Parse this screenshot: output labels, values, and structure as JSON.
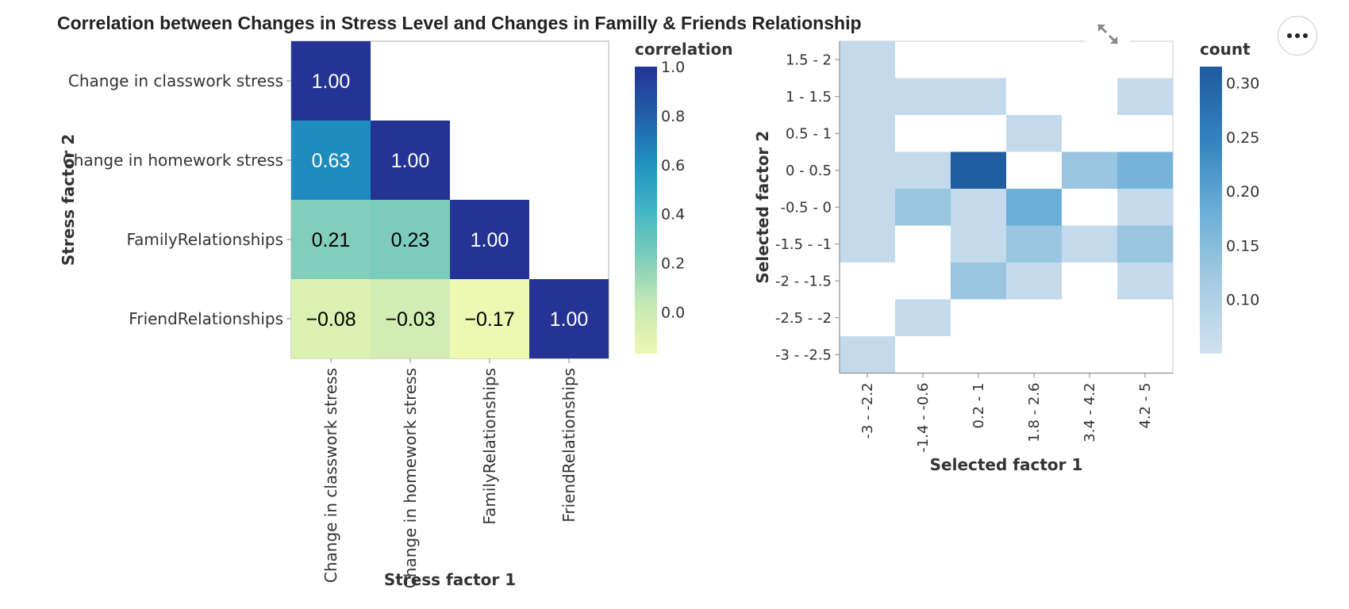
{
  "title": "Correlation between Changes in Stress Level and Changes in Familly & Friends Relationship",
  "icons": {
    "expand": "expand-arrows-icon",
    "menu": "more-horizontal-icon"
  },
  "chart_data": [
    {
      "type": "heatmap",
      "x_categories": [
        "Change in classwork stress",
        "Change in homework stress",
        "FamilyRelationships",
        "FriendRelationships"
      ],
      "y_categories": [
        "Change in classwork stress",
        "Change in homework stress",
        "FamilyRelationships",
        "FriendRelationships"
      ],
      "cells": [
        {
          "x": "Change in classwork stress",
          "y": "Change in classwork stress",
          "value": 1.0,
          "label": "1.00"
        },
        {
          "x": "Change in classwork stress",
          "y": "Change in homework stress",
          "value": 0.63,
          "label": "0.63"
        },
        {
          "x": "Change in homework stress",
          "y": "Change in homework stress",
          "value": 1.0,
          "label": "1.00"
        },
        {
          "x": "Change in classwork stress",
          "y": "FamilyRelationships",
          "value": 0.21,
          "label": "0.21"
        },
        {
          "x": "Change in homework stress",
          "y": "FamilyRelationships",
          "value": 0.23,
          "label": "0.23"
        },
        {
          "x": "FamilyRelationships",
          "y": "FamilyRelationships",
          "value": 1.0,
          "label": "1.00"
        },
        {
          "x": "Change in classwork stress",
          "y": "FriendRelationships",
          "value": -0.08,
          "label": "−0.08"
        },
        {
          "x": "Change in homework stress",
          "y": "FriendRelationships",
          "value": -0.03,
          "label": "−0.03"
        },
        {
          "x": "FamilyRelationships",
          "y": "FriendRelationships",
          "value": -0.17,
          "label": "−0.17"
        },
        {
          "x": "FriendRelationships",
          "y": "FriendRelationships",
          "value": 1.0,
          "label": "1.00"
        }
      ],
      "xlabel": "Stress factor 1",
      "ylabel": "Stress factor 2",
      "legend": {
        "title": "correlation",
        "ticks": [
          "1.0",
          "0.8",
          "0.6",
          "0.4",
          "0.2",
          "0.0"
        ],
        "tick_values": [
          1.0,
          0.8,
          0.6,
          0.4,
          0.2,
          0.0
        ],
        "domain": [
          -0.17,
          1.0
        ],
        "colors": [
          "#edf8b1",
          "#c7e9b4",
          "#7fcdbb",
          "#41b6c4",
          "#1d91c0",
          "#225ea8",
          "#253494"
        ]
      }
    },
    {
      "type": "heatmap",
      "x_categories": [
        "-3 - -2.2",
        "-1.4 - -0.6",
        "0.2 - 1",
        "1.8 - 2.6",
        "3.4 - 4.2",
        "4.2 - 5"
      ],
      "y_categories": [
        "1.5 - 2",
        "1 - 1.5",
        "0.5 - 1",
        "0 - 0.5",
        "-0.5 - 0",
        "-1.5 - -1",
        "-2 - -1.5",
        "-2.5 - -2",
        "-3 - -2.5"
      ],
      "cells": [
        {
          "x": "-3 - -2.2",
          "y": "1.5 - 2",
          "value": 0.07
        },
        {
          "x": "-3 - -2.2",
          "y": "1 - 1.5",
          "value": 0.07
        },
        {
          "x": "-1.4 - -0.6",
          "y": "1 - 1.5",
          "value": 0.07
        },
        {
          "x": "0.2 - 1",
          "y": "1 - 1.5",
          "value": 0.07
        },
        {
          "x": "4.2 - 5",
          "y": "1 - 1.5",
          "value": 0.07
        },
        {
          "x": "-3 - -2.2",
          "y": "0.5 - 1",
          "value": 0.07
        },
        {
          "x": "1.8 - 2.6",
          "y": "0.5 - 1",
          "value": 0.07
        },
        {
          "x": "-3 - -2.2",
          "y": "0 - 0.5",
          "value": 0.07
        },
        {
          "x": "-1.4 - -0.6",
          "y": "0 - 0.5",
          "value": 0.07
        },
        {
          "x": "0.2 - 1",
          "y": "0 - 0.5",
          "value": 0.31
        },
        {
          "x": "3.4 - 4.2",
          "y": "0 - 0.5",
          "value": 0.13
        },
        {
          "x": "4.2 - 5",
          "y": "0 - 0.5",
          "value": 0.17
        },
        {
          "x": "-3 - -2.2",
          "y": "-0.5 - 0",
          "value": 0.07
        },
        {
          "x": "-1.4 - -0.6",
          "y": "-0.5 - 0",
          "value": 0.13
        },
        {
          "x": "0.2 - 1",
          "y": "-0.5 - 0",
          "value": 0.07
        },
        {
          "x": "1.8 - 2.6",
          "y": "-0.5 - 0",
          "value": 0.18
        },
        {
          "x": "4.2 - 5",
          "y": "-0.5 - 0",
          "value": 0.07
        },
        {
          "x": "-3 - -2.2",
          "y": "-1.5 - -1",
          "value": 0.07
        },
        {
          "x": "0.2 - 1",
          "y": "-1.5 - -1",
          "value": 0.07
        },
        {
          "x": "1.8 - 2.6",
          "y": "-1.5 - -1",
          "value": 0.13
        },
        {
          "x": "3.4 - 4.2",
          "y": "-1.5 - -1",
          "value": 0.07
        },
        {
          "x": "4.2 - 5",
          "y": "-1.5 - -1",
          "value": 0.13
        },
        {
          "x": "0.2 - 1",
          "y": "-2 - -1.5",
          "value": 0.13
        },
        {
          "x": "1.8 - 2.6",
          "y": "-2 - -1.5",
          "value": 0.07
        },
        {
          "x": "4.2 - 5",
          "y": "-2 - -1.5",
          "value": 0.07
        },
        {
          "x": "-1.4 - -0.6",
          "y": "-2.5 - -2",
          "value": 0.07
        },
        {
          "x": "-3 - -2.2",
          "y": "-3 - -2.5",
          "value": 0.07
        }
      ],
      "xlabel": "Selected factor 1",
      "ylabel": "Selected factor 2",
      "legend": {
        "title": "count",
        "ticks": [
          "0.30",
          "0.25",
          "0.20",
          "0.15",
          "0.10"
        ],
        "tick_values": [
          0.3,
          0.25,
          0.2,
          0.15,
          0.1
        ],
        "domain": [
          0.05,
          0.315
        ],
        "colors": [
          "#d0e1f2",
          "#a6cbe2",
          "#6aaed6",
          "#3282be",
          "#1f5a9e"
        ]
      }
    }
  ]
}
